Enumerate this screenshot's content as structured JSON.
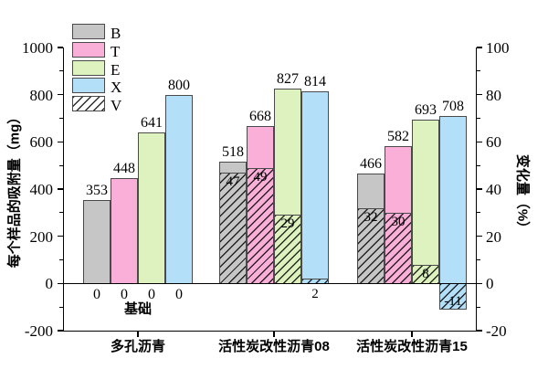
{
  "chart_data": {
    "type": "bar",
    "title": "",
    "ylabel_left": "每个样品的吸附量（mg）",
    "ylabel_right": "变化量（%）",
    "ylim_left": [
      -200,
      1000
    ],
    "ylim_right": [
      -20,
      100
    ],
    "yticks_left": [
      "1000",
      "800",
      "600",
      "400",
      "200",
      "0",
      "-200"
    ],
    "ytick_values_left": [
      1000,
      800,
      600,
      400,
      200,
      0,
      -200
    ],
    "yticks_right": [
      "100",
      "80",
      "60",
      "40",
      "20",
      "0",
      "-20"
    ],
    "ytick_values_right": [
      100,
      80,
      60,
      40,
      20,
      0,
      -20
    ],
    "minor_tick_values_left": [
      900,
      700,
      500,
      300,
      100,
      -100
    ],
    "minor_tick_values_right": [
      90,
      70,
      50,
      30,
      10,
      -10
    ],
    "grid": false,
    "legend_position": "upper-left-inside",
    "categories": [
      "多孔沥青",
      "活性炭改性沥青08",
      "活性炭改性沥青15"
    ],
    "series_names": [
      "B",
      "T",
      "E",
      "X"
    ],
    "change_series_name": "V",
    "groups": [
      {
        "category": "多孔沥青",
        "values": [
          353,
          448,
          641,
          800
        ],
        "changes": null,
        "zero_labels": [
          "0",
          "0",
          "0",
          "0"
        ],
        "baseline_label": "基础"
      },
      {
        "category": "活性炭改性沥青08",
        "values": [
          518,
          668,
          827,
          814
        ],
        "changes": [
          47,
          49,
          29,
          2
        ]
      },
      {
        "category": "活性炭改性沥青15",
        "values": [
          466,
          582,
          693,
          708
        ],
        "changes": [
          32,
          30,
          8,
          -11
        ]
      }
    ],
    "legend": [
      {
        "label": "B",
        "color": "#C6C6C6",
        "hatch": false
      },
      {
        "label": "T",
        "color": "#FAAFD8",
        "hatch": false
      },
      {
        "label": "E",
        "color": "#DDF2BE",
        "hatch": false
      },
      {
        "label": "X",
        "color": "#B3DFF8",
        "hatch": false
      },
      {
        "label": "V",
        "color": "#FFFFFF",
        "hatch": true
      }
    ],
    "colors": {
      "bar_border": "#4a4a4a",
      "axis": "#000000",
      "text": "#000000",
      "background": "#FFFFFF"
    }
  }
}
